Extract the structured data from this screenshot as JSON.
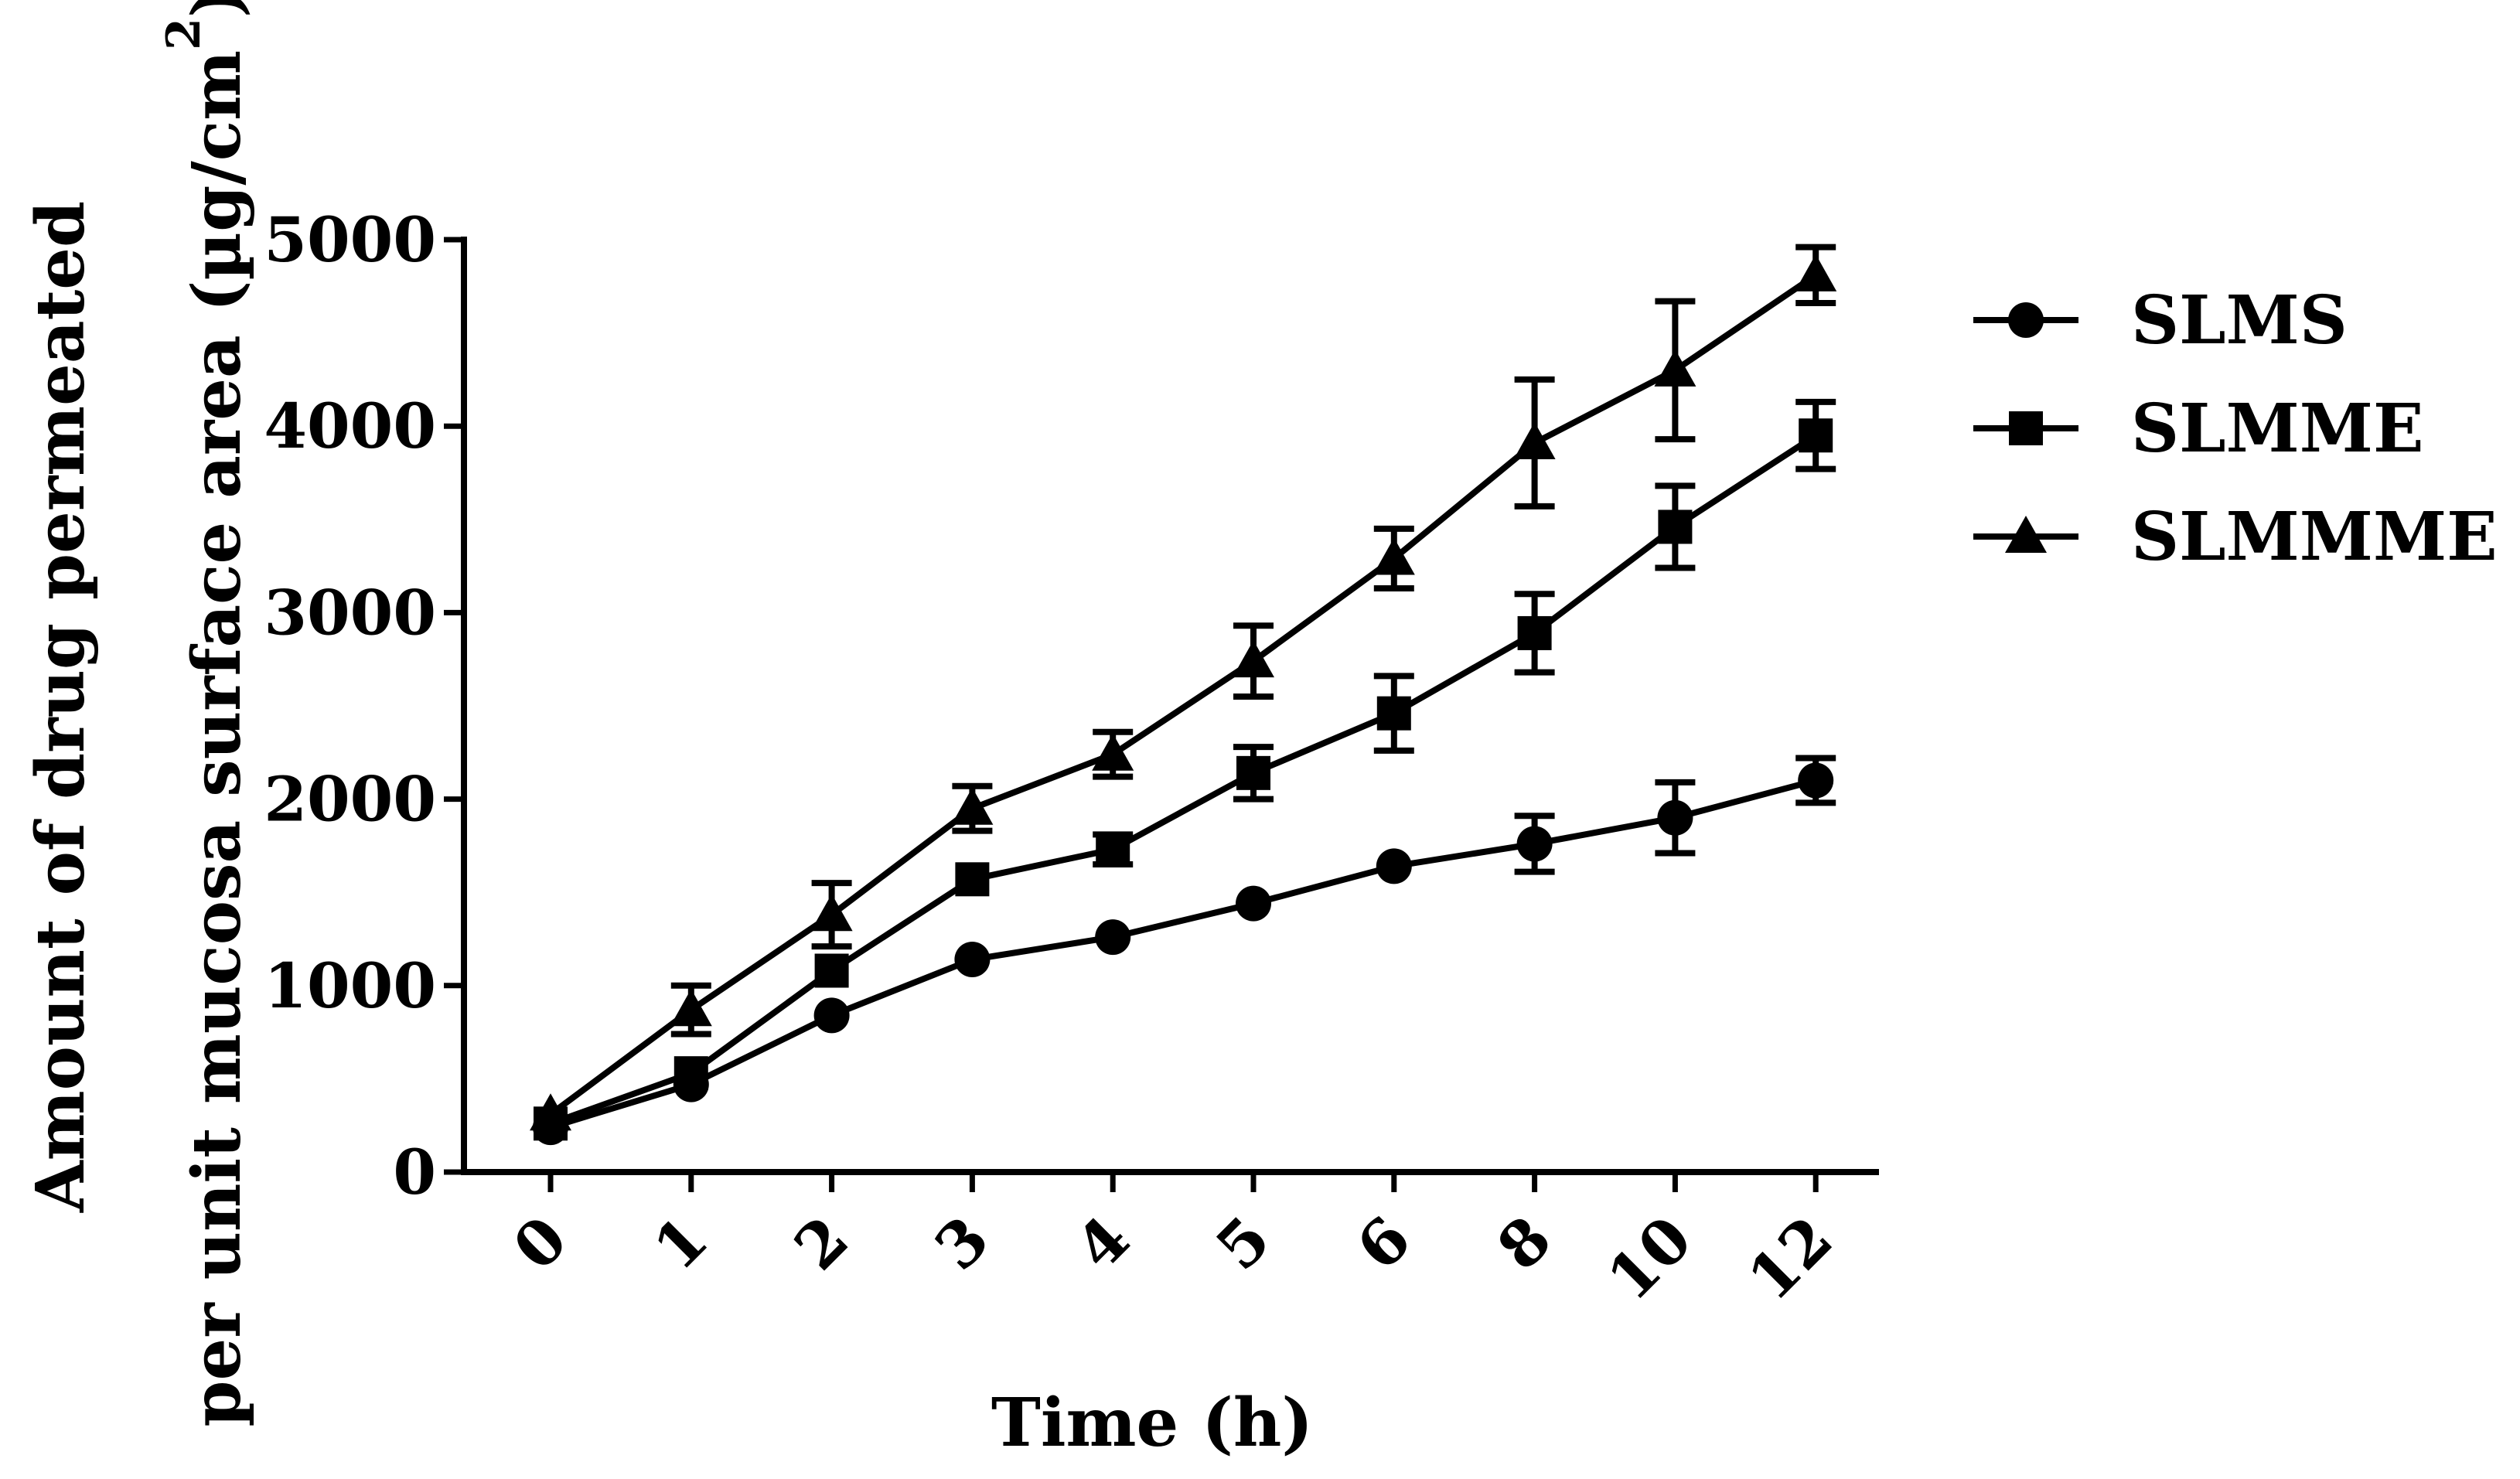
{
  "chart_data": {
    "type": "line",
    "title": "",
    "xlabel": "Time (h)",
    "ylabel_lines": [
      "Amount of drug permeated",
      "per unit mucosa surface area (µg/cm",
      "2",
      ")"
    ],
    "categories": [
      "0",
      "1",
      "2",
      "3",
      "4",
      "5",
      "6",
      "8",
      "10",
      "12"
    ],
    "ylim": [
      0,
      5000
    ],
    "yticks": [
      "0",
      "1000",
      "2000",
      "3000",
      "4000",
      "5000"
    ],
    "legend_position": "right",
    "series": [
      {
        "name": "SLMS",
        "marker": "circle",
        "values": [
          240,
          470,
          840,
          1140,
          1260,
          1440,
          1640,
          1760,
          1900,
          2100
        ],
        "errors": [
          0,
          0,
          0,
          0,
          0,
          0,
          0,
          150,
          190,
          120
        ]
      },
      {
        "name": "SLMME",
        "marker": "square",
        "values": [
          260,
          530,
          1080,
          1570,
          1730,
          2140,
          2460,
          2890,
          3460,
          3950
        ],
        "errors": [
          0,
          0,
          0,
          0,
          80,
          140,
          200,
          210,
          220,
          180
        ]
      },
      {
        "name": "SLMMME",
        "marker": "triangle",
        "values": [
          310,
          870,
          1380,
          1950,
          2240,
          2740,
          3290,
          3910,
          4300,
          4810
        ],
        "errors": [
          0,
          130,
          170,
          120,
          120,
          190,
          160,
          340,
          370,
          150
        ]
      }
    ]
  }
}
